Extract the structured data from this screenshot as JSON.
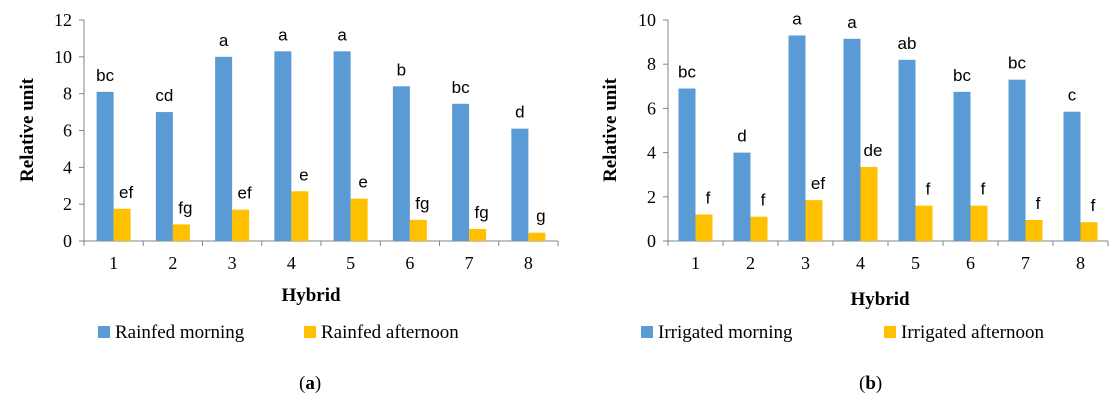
{
  "chart_data": [
    {
      "type": "bar",
      "panel_label": "a",
      "categories": [
        "1",
        "2",
        "3",
        "4",
        "5",
        "6",
        "7",
        "8"
      ],
      "xlabel": "Hybrid",
      "ylabel": "Relative unit",
      "ylim": [
        0,
        12
      ],
      "yticks": [
        0,
        2,
        4,
        6,
        8,
        10,
        12
      ],
      "grid": false,
      "legend_position": "bottom",
      "series": [
        {
          "name": "Rainfed morning",
          "color": "#5B9BD5",
          "values": [
            8.1,
            7.0,
            10.0,
            10.3,
            10.3,
            8.4,
            7.45,
            6.1
          ],
          "labels": [
            "bc",
            "cd",
            "a",
            "a",
            "a",
            "b",
            "bc",
            "d"
          ]
        },
        {
          "name": "Rainfed afternoon",
          "color": "#FFC000",
          "values": [
            1.75,
            0.9,
            1.7,
            2.7,
            2.3,
            1.15,
            0.65,
            0.45
          ],
          "labels": [
            "ef",
            "fg",
            "ef",
            "e",
            "e",
            "fg",
            "fg",
            "g"
          ]
        }
      ]
    },
    {
      "type": "bar",
      "panel_label": "b",
      "categories": [
        "1",
        "2",
        "3",
        "4",
        "5",
        "6",
        "7",
        "8"
      ],
      "xlabel": "Hybrid",
      "ylabel": "Relative unit",
      "ylim": [
        0,
        10
      ],
      "yticks": [
        0,
        2,
        4,
        6,
        8,
        10
      ],
      "grid": false,
      "legend_position": "bottom",
      "series": [
        {
          "name": "Irrigated morning",
          "color": "#5B9BD5",
          "values": [
            6.9,
            4.0,
            9.3,
            9.15,
            8.2,
            6.75,
            7.3,
            5.85
          ],
          "labels": [
            "bc",
            "d",
            "a",
            "a",
            "ab",
            "bc",
            "bc",
            "c"
          ]
        },
        {
          "name": "Irrigated afternoon",
          "color": "#FFC000",
          "values": [
            1.2,
            1.1,
            1.85,
            3.35,
            1.6,
            1.6,
            0.95,
            0.85
          ],
          "labels": [
            "f",
            "f",
            "ef",
            "de",
            "f",
            "f",
            "f",
            "f"
          ]
        }
      ]
    }
  ]
}
